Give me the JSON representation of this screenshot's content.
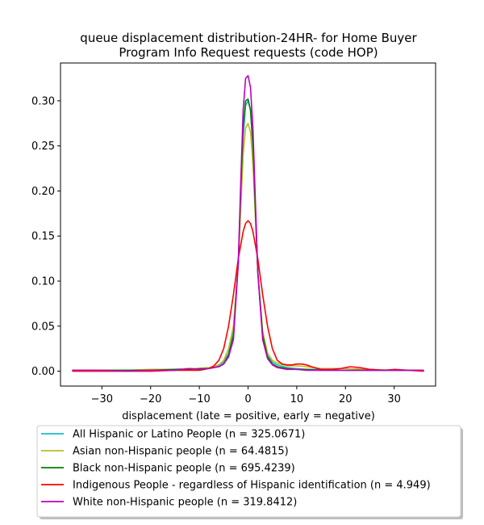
{
  "chart_data": {
    "type": "line",
    "title": [
      "queue displacement distribution-24HR-  for Home Buyer",
      "Program Info Request  requests (code HOP)"
    ],
    "xlabel": "displacement (late = positive, early = negative)",
    "ylabel": "",
    "xlim": [
      -38.5,
      38.5
    ],
    "ylim": [
      -0.0165,
      0.342
    ],
    "xticks": [
      -30,
      -20,
      -10,
      0,
      10,
      20,
      30
    ],
    "xtick_labels": [
      "−30",
      "−20",
      "−10",
      "0",
      "10",
      "20",
      "30"
    ],
    "yticks": [
      0.0,
      0.05,
      0.1,
      0.15,
      0.2,
      0.25,
      0.3
    ],
    "ytick_labels": [
      "0.00",
      "0.05",
      "0.10",
      "0.15",
      "0.20",
      "0.25",
      "0.30"
    ],
    "grid": false,
    "legend_position": "below",
    "series": [
      {
        "name": "All Hispanic or Latino People (n = 325.0671)",
        "color": "#17becf",
        "x": [
          -36,
          -30,
          -25,
          -20,
          -15,
          -12,
          -10,
          -8,
          -6,
          -5,
          -4,
          -3,
          -2,
          -1.5,
          -1,
          -0.5,
          0,
          0.5,
          1,
          1.5,
          2,
          3,
          4,
          5,
          6,
          8,
          10,
          12,
          15,
          20,
          25,
          30,
          36
        ],
        "y": [
          0.001,
          0.001,
          0.001,
          0.001,
          0.002,
          0.003,
          0.003,
          0.004,
          0.006,
          0.01,
          0.02,
          0.045,
          0.12,
          0.19,
          0.26,
          0.295,
          0.3,
          0.29,
          0.25,
          0.18,
          0.11,
          0.04,
          0.018,
          0.01,
          0.007,
          0.004,
          0.003,
          0.002,
          0.002,
          0.001,
          0.001,
          0.001,
          0.001
        ]
      },
      {
        "name": "Asian non-Hispanic people (n = 64.4815)",
        "color": "#bcbd22",
        "x": [
          -36,
          -30,
          -25,
          -20,
          -15,
          -12,
          -10,
          -8,
          -6,
          -5,
          -4,
          -3,
          -2,
          -1.5,
          -1,
          -0.5,
          0,
          0.5,
          1,
          1.5,
          2,
          3,
          4,
          5,
          6,
          8,
          10,
          12,
          15,
          20,
          25,
          30,
          36
        ],
        "y": [
          0.001,
          0.001,
          0.001,
          0.002,
          0.002,
          0.003,
          0.003,
          0.004,
          0.007,
          0.012,
          0.025,
          0.05,
          0.12,
          0.18,
          0.24,
          0.27,
          0.275,
          0.265,
          0.23,
          0.17,
          0.11,
          0.045,
          0.02,
          0.012,
          0.009,
          0.006,
          0.006,
          0.005,
          0.003,
          0.003,
          0.002,
          0.001,
          0.001
        ]
      },
      {
        "name": "Black non-Hispanic people (n = 695.4239)",
        "color": "#008000",
        "x": [
          -36,
          -30,
          -25,
          -20,
          -15,
          -12,
          -10,
          -8,
          -6,
          -5,
          -4,
          -3,
          -2,
          -1.5,
          -1,
          -0.5,
          0,
          0.5,
          1,
          1.5,
          2,
          3,
          4,
          5,
          6,
          8,
          10,
          12,
          15,
          20,
          25,
          30,
          36
        ],
        "y": [
          0.001,
          0.001,
          0.001,
          0.001,
          0.002,
          0.002,
          0.003,
          0.003,
          0.005,
          0.008,
          0.018,
          0.04,
          0.12,
          0.2,
          0.27,
          0.3,
          0.302,
          0.29,
          0.25,
          0.18,
          0.11,
          0.04,
          0.016,
          0.008,
          0.005,
          0.003,
          0.002,
          0.002,
          0.001,
          0.001,
          0.001,
          0.001,
          0.001
        ]
      },
      {
        "name": "Indigenous People - regardless of Hispanic identification (n = 4.949)",
        "color": "#ff0000",
        "x": [
          -36,
          -30,
          -25,
          -20,
          -15,
          -12,
          -10,
          -8,
          -7,
          -6,
          -5,
          -4,
          -3,
          -2,
          -1,
          -0.5,
          0,
          0.5,
          1,
          2,
          3,
          4,
          5,
          6,
          7,
          8,
          9,
          10,
          11,
          12,
          13,
          15,
          17,
          19,
          21,
          23,
          25,
          28,
          30,
          33,
          36
        ],
        "y": [
          0.0,
          0.0,
          0.0,
          0.0,
          0.001,
          0.001,
          0.001,
          0.003,
          0.006,
          0.012,
          0.025,
          0.05,
          0.085,
          0.125,
          0.155,
          0.164,
          0.167,
          0.164,
          0.155,
          0.125,
          0.085,
          0.05,
          0.025,
          0.012,
          0.008,
          0.007,
          0.007,
          0.008,
          0.008,
          0.007,
          0.005,
          0.002,
          0.002,
          0.003,
          0.005,
          0.004,
          0.002,
          0.001,
          0.002,
          0.001,
          0.0
        ]
      },
      {
        "name": "White non-Hispanic people (n = 319.8412)",
        "color": "#bf00bf",
        "x": [
          -36,
          -30,
          -25,
          -20,
          -15,
          -12,
          -10,
          -8,
          -6,
          -5,
          -4,
          -3,
          -2,
          -1.5,
          -1,
          -0.5,
          0,
          0.5,
          1,
          1.5,
          2,
          3,
          4,
          5,
          6,
          8,
          10,
          12,
          15,
          20,
          25,
          30,
          36
        ],
        "y": [
          0.001,
          0.001,
          0.0,
          0.001,
          0.001,
          0.003,
          0.002,
          0.003,
          0.005,
          0.008,
          0.016,
          0.035,
          0.12,
          0.21,
          0.29,
          0.325,
          0.328,
          0.315,
          0.27,
          0.19,
          0.11,
          0.035,
          0.014,
          0.007,
          0.004,
          0.002,
          0.002,
          0.001,
          0.001,
          0.001,
          0.001,
          0.001,
          0.001
        ]
      }
    ]
  }
}
